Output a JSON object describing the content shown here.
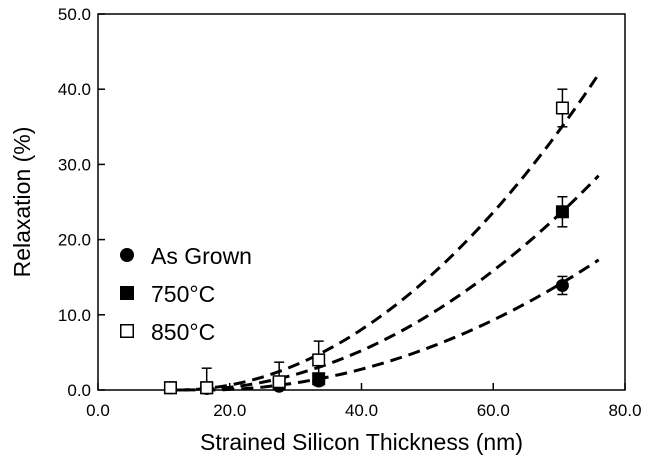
{
  "chart_data": {
    "type": "scatter",
    "xlabel": "Strained Silicon Thickness (nm)",
    "ylabel": "Relaxation (%)",
    "xlim": [
      0,
      80
    ],
    "ylim": [
      0,
      50
    ],
    "x_ticks": [
      "0.0",
      "20.0",
      "40.0",
      "60.0",
      "80.0"
    ],
    "x_tick_values": [
      0,
      20,
      40,
      60,
      80
    ],
    "y_ticks": [
      "0.0",
      "10.0",
      "20.0",
      "30.0",
      "40.0",
      "50.0"
    ],
    "y_tick_values": [
      0,
      10,
      20,
      30,
      40,
      50
    ],
    "grid": false,
    "legend_position": "middle-left",
    "series": [
      {
        "name": "As Grown",
        "marker": "filled-circle",
        "color": "#000000",
        "points": [
          {
            "x": 11,
            "y": 0.3,
            "err": 0.4
          },
          {
            "x": 16.5,
            "y": 0.2,
            "err": 0.3
          },
          {
            "x": 27.5,
            "y": 0.5,
            "err": 0.5
          },
          {
            "x": 33.5,
            "y": 1.2,
            "err": 0.6
          },
          {
            "x": 70.5,
            "y": 13.9,
            "err": 1.2
          }
        ],
        "fit": {
          "x": [
            16,
            76
          ],
          "y": [
            0,
            17.3
          ]
        }
      },
      {
        "name": "750°C",
        "marker": "filled-square",
        "color": "#000000",
        "points": [
          {
            "x": 11,
            "y": 0.3,
            "err": 0.3
          },
          {
            "x": 16.5,
            "y": 0.3,
            "err": 0.5
          },
          {
            "x": 27.5,
            "y": 0.8,
            "err": 0.5
          },
          {
            "x": 33.5,
            "y": 1.5,
            "err": 0.7
          },
          {
            "x": 70.5,
            "y": 23.7,
            "err": 2.0
          }
        ],
        "fit": {
          "x": [
            13,
            76
          ],
          "y": [
            0,
            28.5
          ]
        }
      },
      {
        "name": "850°C",
        "marker": "open-square",
        "color": "#000000",
        "points": [
          {
            "x": 11,
            "y": 0.3,
            "err": 0.3
          },
          {
            "x": 16.5,
            "y": 0.3,
            "err": 2.6
          },
          {
            "x": 27.5,
            "y": 1.1,
            "err": 2.6
          },
          {
            "x": 33.5,
            "y": 4.0,
            "err": 2.5
          },
          {
            "x": 70.5,
            "y": 37.5,
            "err": 2.5
          }
        ],
        "fit": {
          "x": [
            12,
            76
          ],
          "y": [
            0,
            42
          ]
        }
      }
    ]
  }
}
